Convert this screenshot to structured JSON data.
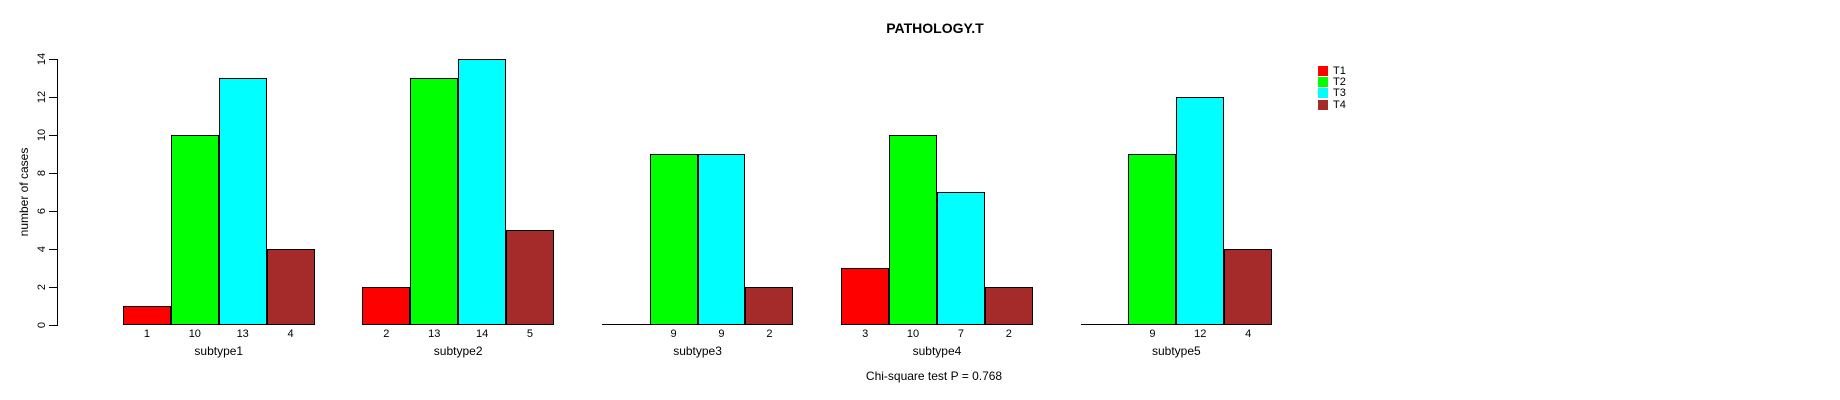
{
  "title": "PATHOLOGY.T",
  "y_axis": {
    "label": "number of cases",
    "ticks": [
      0,
      2,
      4,
      6,
      8,
      10,
      12,
      14
    ]
  },
  "footer": {
    "stat_text": "Chi-square test P = 0.768"
  },
  "legend": {
    "position": "top-right",
    "items": [
      {
        "label": "T1",
        "color": "#FF0000"
      },
      {
        "label": "T2",
        "color": "#00FF00"
      },
      {
        "label": "T3",
        "color": "#00FFFF"
      },
      {
        "label": "T4",
        "color": "#A52A2A"
      }
    ]
  },
  "chart_data": {
    "type": "bar",
    "grouped": true,
    "title": "PATHOLOGY.T",
    "xlabel": "",
    "ylabel": "number of cases",
    "ylim": [
      0,
      14
    ],
    "yticks": [
      0,
      2,
      4,
      6,
      8,
      10,
      12,
      14
    ],
    "grid": false,
    "legend_position": "top-right",
    "categories": [
      "subtype1",
      "subtype2",
      "subtype3",
      "subtype4",
      "subtype5"
    ],
    "series": [
      {
        "name": "T1",
        "color": "#FF0000",
        "values": [
          1,
          2,
          0,
          3,
          0
        ]
      },
      {
        "name": "T2",
        "color": "#00FF00",
        "values": [
          10,
          13,
          9,
          10,
          9
        ]
      },
      {
        "name": "T3",
        "color": "#00FFFF",
        "values": [
          13,
          14,
          9,
          7,
          12
        ]
      },
      {
        "name": "T4",
        "color": "#A52A2A",
        "values": [
          4,
          5,
          2,
          2,
          4
        ]
      }
    ],
    "bar_value_labels": "shown under each bar, omitted when value is 0",
    "annotation": "Chi-square test P = 0.768"
  }
}
